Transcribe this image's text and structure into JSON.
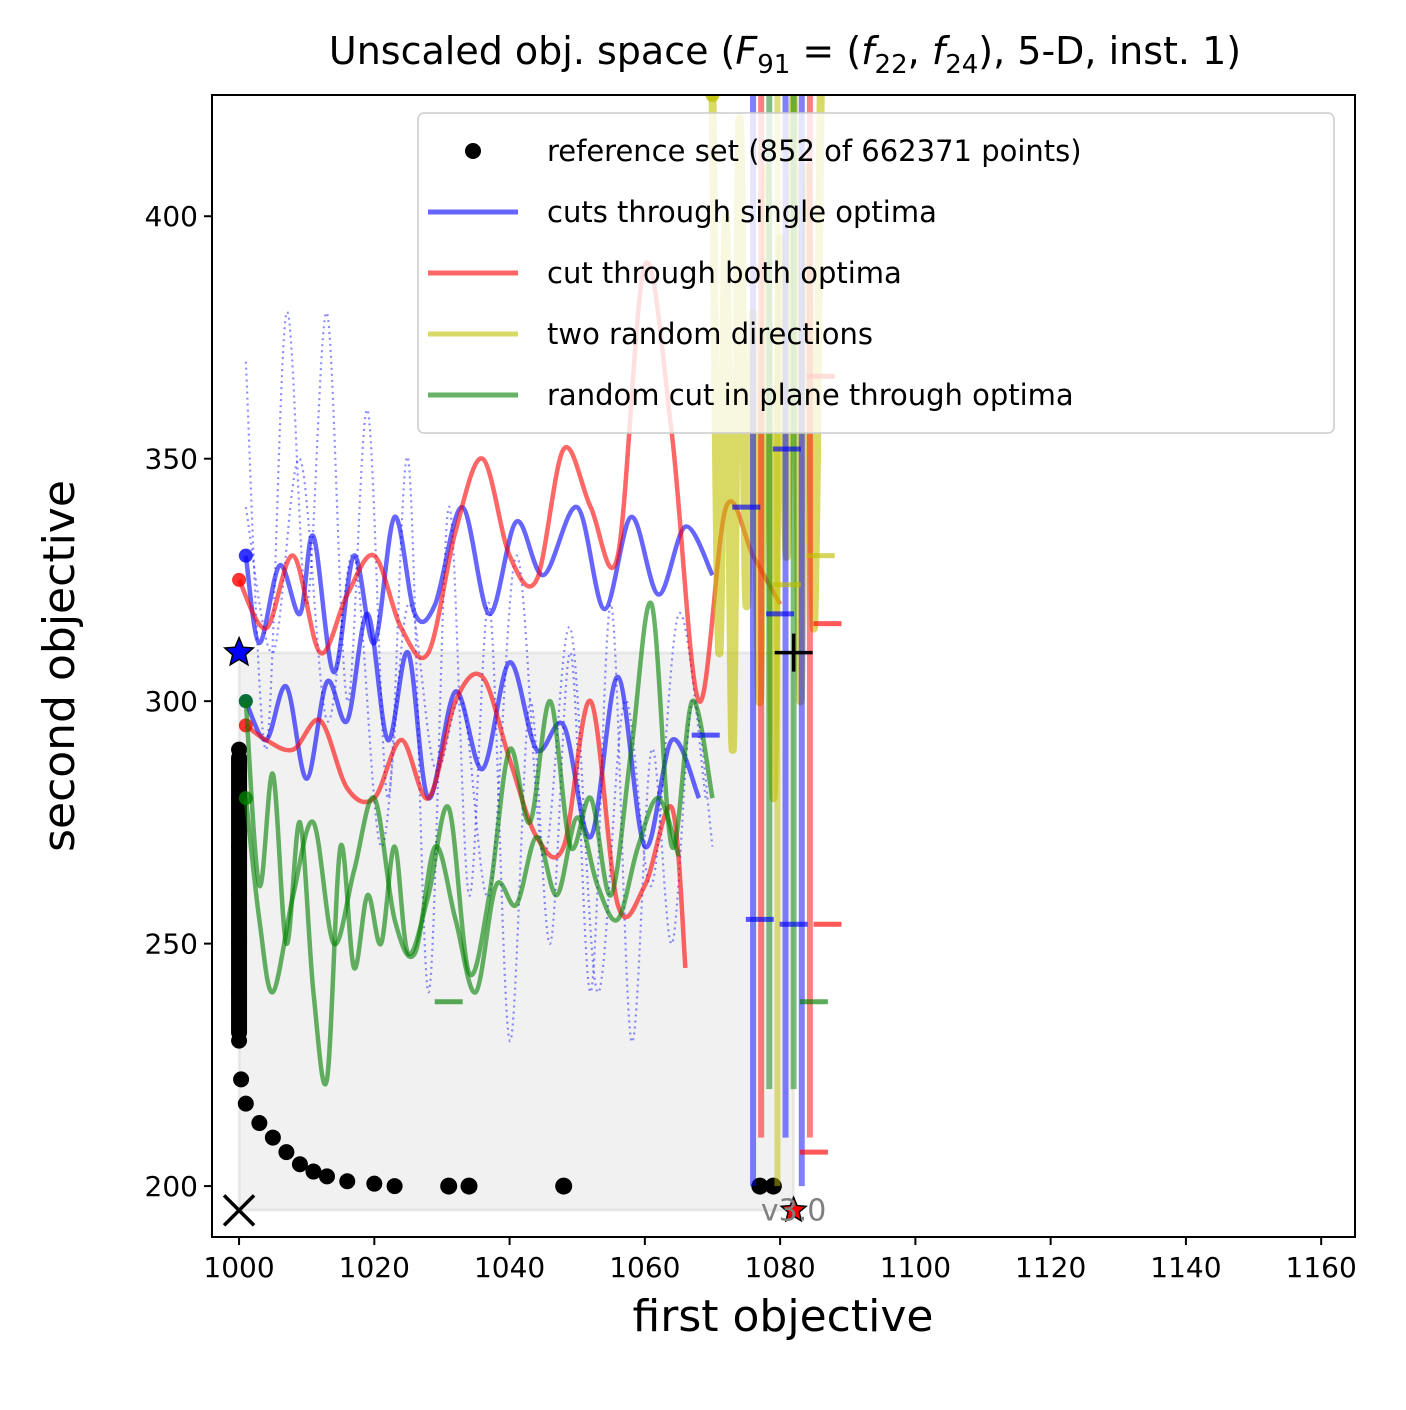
{
  "chart_data": {
    "type": "line",
    "title": "Unscaled obj. space (F_91 = (f_22, f_24), 5-D, inst. 1)",
    "title_parts": {
      "prefix": "Unscaled obj. space (",
      "F": "F",
      "F_sub": "91",
      "eq": " = (",
      "f1": "f",
      "f1_sub": "22",
      "comma": ", ",
      "f2": "f",
      "f2_sub": "24",
      "suffix": "), 5-D, inst. 1)"
    },
    "xlabel": "first objective",
    "ylabel": "second objective",
    "xlim": [
      996,
      1165
    ],
    "ylim": [
      189.5,
      425
    ],
    "xticks": [
      1000,
      1020,
      1040,
      1060,
      1080,
      1100,
      1120,
      1140,
      1160
    ],
    "yticks": [
      200,
      250,
      300,
      350,
      400
    ],
    "version_text": "v3.0",
    "legend_position": "top-right",
    "legend": [
      {
        "label": "reference set (852 of 662371 points)",
        "kind": "marker",
        "color": "#000000"
      },
      {
        "label": "cuts through single optima",
        "kind": "line",
        "color": "#0000ff"
      },
      {
        "label": "cut through both optima",
        "kind": "line",
        "color": "#ff0000"
      },
      {
        "label": "two random directions",
        "kind": "line",
        "color": "#bfbf00"
      },
      {
        "label": "random cut in plane through optima",
        "kind": "line",
        "color": "#008000"
      }
    ],
    "colors": {
      "blue": "#0000ff",
      "red": "#ff0000",
      "yellow": "#bfbf00",
      "green": "#008000",
      "black": "#000000"
    },
    "markers": {
      "optimum_f1": {
        "x": 1000,
        "y": 310
      },
      "optimum_f2": {
        "x": 1082,
        "y": 195
      },
      "ideal": {
        "x": 1000,
        "y": 195
      },
      "nadir": {
        "x": 1082,
        "y": 310
      }
    },
    "reference_set": {
      "left_branch": [
        [
          1000,
          290
        ],
        [
          1000,
          280
        ],
        [
          1000,
          270
        ],
        [
          1000,
          260
        ],
        [
          1000,
          250
        ],
        [
          1000,
          240
        ],
        [
          1000,
          230
        ],
        [
          1000.3,
          222
        ],
        [
          1001,
          217
        ],
        [
          1003,
          213
        ],
        [
          1005,
          210
        ],
        [
          1007,
          207
        ],
        [
          1009,
          204.5
        ],
        [
          1011,
          203
        ],
        [
          1013,
          202
        ],
        [
          1016,
          201
        ],
        [
          1020,
          200.5
        ],
        [
          1023,
          200
        ]
      ],
      "isolated": [
        [
          1031,
          200
        ],
        [
          1034,
          200
        ],
        [
          1048,
          200
        ],
        [
          1077,
          200
        ],
        [
          1079,
          200
        ]
      ]
    },
    "series": [
      {
        "name": "cuts through single optima",
        "color": "#0000ff",
        "style": "solid",
        "x": [
          1001,
          1003,
          1006,
          1009,
          1011,
          1014,
          1017,
          1020,
          1023,
          1026,
          1029,
          1033,
          1037,
          1041,
          1045,
          1050,
          1054,
          1058,
          1062,
          1066,
          1070
        ],
        "y": [
          330,
          312,
          328,
          318,
          334,
          306,
          330,
          312,
          338,
          318,
          320,
          340,
          318,
          337,
          326,
          340,
          319,
          338,
          322,
          336,
          326
        ]
      },
      {
        "name": "cuts through single optima",
        "color": "#0000ff",
        "style": "solid",
        "x": [
          1001,
          1004,
          1007,
          1010,
          1013,
          1016,
          1019,
          1022,
          1025,
          1028,
          1032,
          1036,
          1040,
          1044,
          1048,
          1052,
          1056,
          1060,
          1064,
          1068
        ],
        "y": [
          300,
          292,
          303,
          284,
          304,
          296,
          318,
          292,
          310,
          280,
          302,
          286,
          308,
          290,
          295,
          272,
          305,
          270,
          292,
          280
        ]
      },
      {
        "name": "cut through both optima",
        "color": "#ff0000",
        "style": "solid",
        "x": [
          1000,
          1004,
          1008,
          1012,
          1016,
          1020,
          1024,
          1028,
          1032,
          1036,
          1040,
          1044,
          1048,
          1052,
          1056,
          1060,
          1064,
          1068,
          1072,
          1076,
          1080
        ],
        "y": [
          325,
          315,
          330,
          310,
          322,
          330,
          315,
          310,
          335,
          350,
          330,
          325,
          352,
          340,
          330,
          390,
          355,
          300,
          340,
          330,
          320
        ]
      },
      {
        "name": "cut through both optima",
        "color": "#ff0000",
        "style": "solid",
        "x": [
          1001,
          1004,
          1008,
          1012,
          1016,
          1020,
          1024,
          1028,
          1032,
          1036,
          1040,
          1044,
          1048,
          1052,
          1056,
          1060,
          1064,
          1066
        ],
        "y": [
          295,
          292,
          290,
          296,
          282,
          280,
          292,
          280,
          300,
          305,
          288,
          272,
          270,
          300,
          258,
          262,
          278,
          245
        ]
      },
      {
        "name": "random cut in plane through optima",
        "color": "#008000",
        "style": "solid",
        "x": [
          1001,
          1003,
          1005,
          1007,
          1009,
          1011,
          1013,
          1015,
          1017,
          1019,
          1021,
          1023,
          1025,
          1028,
          1031,
          1034,
          1037,
          1040,
          1043,
          1046,
          1049,
          1052,
          1055,
          1058,
          1061,
          1064,
          1067,
          1070
        ],
        "y": [
          300,
          262,
          285,
          250,
          275,
          240,
          222,
          270,
          245,
          260,
          250,
          270,
          248,
          260,
          278,
          244,
          260,
          290,
          275,
          300,
          270,
          280,
          260,
          290,
          320,
          270,
          300,
          280
        ]
      },
      {
        "name": "random cut in plane through optima",
        "color": "#008000",
        "style": "solid",
        "x": [
          1001,
          1003,
          1005,
          1008,
          1011,
          1014,
          1017,
          1020,
          1023,
          1026,
          1029,
          1032,
          1035,
          1038,
          1041,
          1044,
          1047,
          1050,
          1053,
          1056,
          1059,
          1062,
          1065
        ],
        "y": [
          280,
          255,
          240,
          260,
          275,
          250,
          265,
          280,
          255,
          248,
          270,
          255,
          240,
          262,
          258,
          272,
          260,
          276,
          262,
          255,
          270,
          280,
          268
        ]
      },
      {
        "name": "cuts through single optima",
        "color": "#0000ff",
        "style": "dotted",
        "x": [
          1001,
          1004,
          1007,
          1010,
          1013,
          1016,
          1019,
          1022,
          1025,
          1028,
          1031,
          1034,
          1037,
          1040,
          1043,
          1046,
          1049,
          1052,
          1055,
          1058,
          1061,
          1064,
          1067,
          1070
        ],
        "y": [
          370,
          290,
          380,
          320,
          380,
          300,
          360,
          280,
          350,
          240,
          340,
          260,
          320,
          230,
          300,
          250,
          310,
          240,
          320,
          230,
          290,
          250,
          300,
          270
        ]
      },
      {
        "name": "cuts through single optima",
        "color": "#0000ff",
        "style": "dotted",
        "x": [
          1001,
          1005,
          1009,
          1013,
          1017,
          1021,
          1025,
          1029,
          1033,
          1037,
          1041,
          1045,
          1049,
          1053,
          1057,
          1061,
          1065,
          1069
        ],
        "y": [
          340,
          310,
          350,
          296,
          330,
          270,
          320,
          286,
          300,
          260,
          330,
          268,
          315,
          240,
          300,
          262,
          318,
          280
        ]
      },
      {
        "name": "two random directions",
        "color": "#bfbf00",
        "style": "solid",
        "x": [
          1070,
          1071,
          1072,
          1073,
          1074,
          1075,
          1076,
          1077,
          1078,
          1079,
          1080,
          1081,
          1082,
          1083,
          1084,
          1085,
          1086
        ],
        "y": [
          425,
          310,
          400,
          290,
          420,
          320,
          380,
          300,
          410,
          280,
          395,
          330,
          425,
          300,
          410,
          315,
          425
        ]
      }
    ],
    "line_ends": [
      {
        "color": "#ff0000",
        "x": 1086,
        "y": 367
      },
      {
        "color": "#ff0000",
        "x": 1087,
        "y": 316
      },
      {
        "color": "#ff0000",
        "x": 1087,
        "y": 254
      },
      {
        "color": "#ff0000",
        "x": 1085,
        "y": 207
      },
      {
        "color": "#0000ff",
        "x": 1075,
        "y": 340
      },
      {
        "color": "#0000ff",
        "x": 1080,
        "y": 318
      },
      {
        "color": "#0000ff",
        "x": 1069,
        "y": 293
      },
      {
        "color": "#0000ff",
        "x": 1077,
        "y": 255
      },
      {
        "color": "#0000ff",
        "x": 1082,
        "y": 254
      },
      {
        "color": "#bfbf00",
        "x": 1086,
        "y": 330
      },
      {
        "color": "#bfbf00",
        "x": 1081,
        "y": 324
      },
      {
        "color": "#008000",
        "x": 1085,
        "y": 238
      },
      {
        "color": "#008000",
        "x": 1031,
        "y": 238
      },
      {
        "color": "#0000ff",
        "x": 1081,
        "y": 352
      }
    ]
  }
}
